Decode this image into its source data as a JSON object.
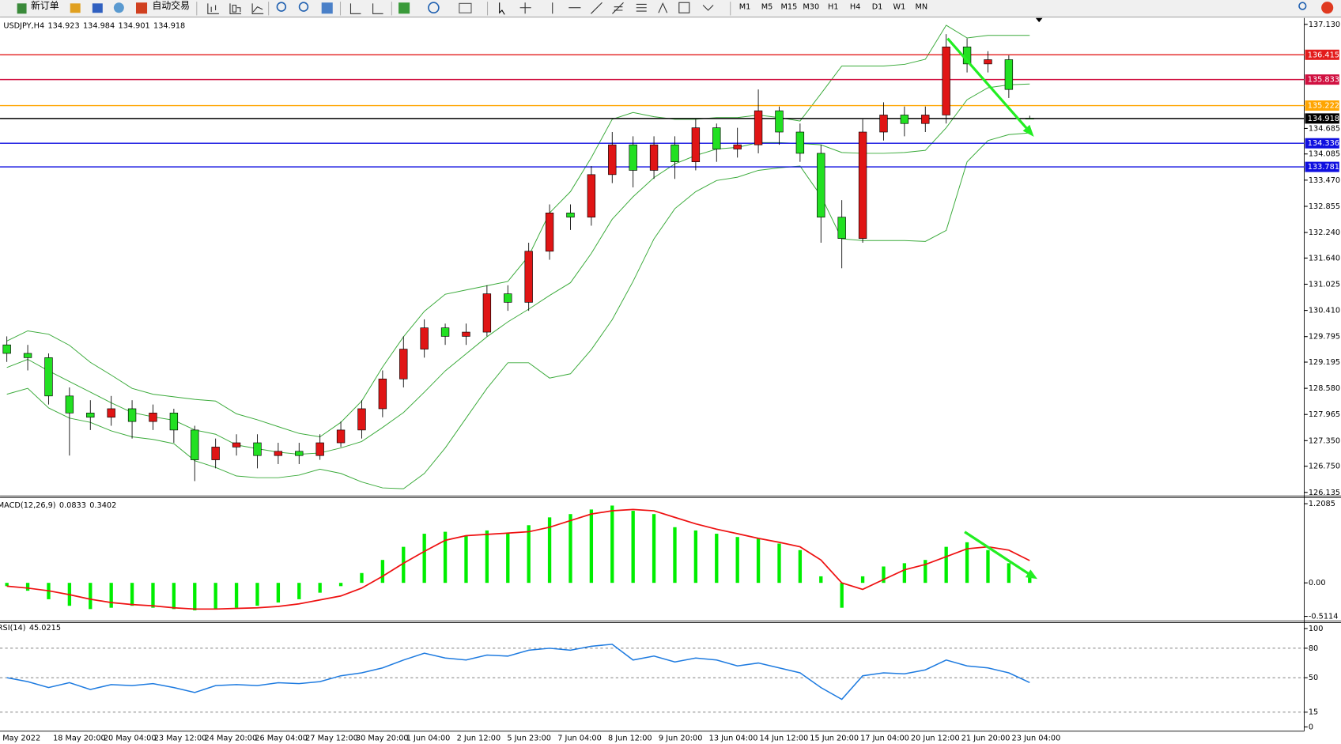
{
  "toolbar": {
    "buttons": [
      "新订单",
      "自动交易"
    ],
    "timeframes": [
      "M1",
      "M5",
      "M15",
      "M30",
      "H1",
      "H4",
      "D1",
      "W1",
      "MN"
    ]
  },
  "chart_data": [
    {
      "type": "candlestick",
      "title": "USDJPY,H4",
      "readout": [
        134.923,
        134.984,
        134.901,
        134.918
      ],
      "up_color": "#e01515",
      "down_color": "#22e022",
      "open": [
        129.6,
        129.4,
        129.3,
        128.4,
        128.0,
        127.9,
        128.1,
        127.8,
        128.0,
        127.6,
        126.9,
        127.2,
        127.3,
        127.0,
        127.1,
        127.0,
        127.3,
        127.6,
        128.1,
        128.8,
        129.5,
        130.0,
        129.8,
        129.9,
        130.8,
        130.6,
        131.8,
        132.7,
        132.6,
        133.6,
        134.3,
        133.7,
        134.3,
        133.9,
        134.7,
        134.2,
        134.3,
        135.1,
        134.6,
        134.1,
        132.6,
        132.1,
        134.6,
        135.0,
        134.8,
        135.0,
        136.6,
        136.2,
        136.3,
        134.923
      ],
      "high": [
        129.8,
        129.6,
        129.4,
        128.6,
        128.3,
        128.4,
        128.3,
        128.2,
        128.1,
        127.7,
        127.4,
        127.5,
        127.5,
        127.3,
        127.3,
        127.5,
        127.8,
        128.3,
        129.0,
        129.8,
        130.2,
        130.1,
        130.1,
        131.0,
        131.0,
        132.0,
        132.9,
        132.9,
        133.8,
        134.6,
        134.5,
        134.5,
        134.5,
        134.9,
        134.8,
        134.7,
        135.6,
        135.2,
        134.8,
        134.3,
        133.0,
        134.9,
        135.3,
        135.2,
        135.2,
        136.9,
        136.8,
        136.5,
        136.4,
        134.984
      ],
      "low": [
        129.2,
        129.0,
        128.2,
        127.0,
        127.6,
        127.7,
        127.4,
        127.6,
        127.3,
        126.4,
        126.7,
        127.0,
        126.7,
        126.8,
        126.8,
        126.9,
        127.2,
        127.4,
        127.9,
        128.6,
        129.3,
        129.6,
        129.6,
        129.8,
        130.4,
        130.4,
        131.6,
        132.3,
        132.4,
        133.4,
        133.3,
        133.5,
        133.5,
        133.7,
        133.9,
        134.0,
        134.1,
        134.3,
        133.9,
        132.0,
        131.4,
        132.0,
        134.4,
        134.5,
        134.6,
        134.8,
        136.0,
        136.0,
        135.4,
        134.901
      ],
      "close": [
        129.4,
        129.3,
        128.4,
        128.0,
        127.9,
        128.1,
        127.8,
        128.0,
        127.6,
        126.9,
        127.2,
        127.3,
        127.0,
        127.1,
        127.0,
        127.3,
        127.6,
        128.1,
        128.8,
        129.5,
        130.0,
        129.8,
        129.9,
        130.8,
        130.6,
        131.8,
        132.7,
        132.6,
        133.6,
        134.3,
        133.7,
        134.3,
        133.9,
        134.7,
        134.2,
        134.3,
        135.1,
        134.6,
        134.1,
        132.6,
        132.1,
        134.6,
        135.0,
        134.8,
        135.0,
        136.6,
        136.2,
        136.3,
        135.6,
        134.918
      ],
      "bands": [
        {
          "color": "#3aaa3a",
          "values": [
            129.69,
            129.93,
            129.85,
            129.59,
            129.19,
            128.89,
            128.58,
            128.44,
            128.38,
            128.32,
            128.28,
            127.98,
            127.84,
            127.68,
            127.52,
            127.44,
            127.78,
            128.28,
            129.08,
            129.79,
            130.39,
            130.79,
            130.89,
            130.99,
            131.09,
            131.69,
            132.7,
            133.2,
            134.0,
            134.9,
            135.06,
            134.96,
            134.9,
            134.9,
            134.94,
            134.94,
            135.0,
            134.94,
            134.86,
            135.5,
            136.15,
            136.15,
            136.15,
            136.19,
            136.31,
            137.11,
            136.81,
            136.87,
            136.87,
            136.87
          ]
        },
        {
          "color": "#3aaa3a",
          "values": [
            129.07,
            129.26,
            128.99,
            128.74,
            128.49,
            128.24,
            128.01,
            127.91,
            127.83,
            127.6,
            127.5,
            127.25,
            127.16,
            127.08,
            127.03,
            127.06,
            127.18,
            127.33,
            127.66,
            128.01,
            128.49,
            128.99,
            129.39,
            129.79,
            130.14,
            130.44,
            130.76,
            131.06,
            131.75,
            132.55,
            133.08,
            133.53,
            133.85,
            134.05,
            134.2,
            134.24,
            134.35,
            134.35,
            134.33,
            134.3,
            134.12,
            134.1,
            134.1,
            134.12,
            134.17,
            134.7,
            135.36,
            135.64,
            135.71,
            135.73
          ]
        },
        {
          "color": "#3aaa3a",
          "values": [
            128.44,
            128.58,
            128.12,
            127.88,
            127.78,
            127.58,
            127.44,
            127.38,
            127.28,
            126.88,
            126.72,
            126.52,
            126.48,
            126.48,
            126.54,
            126.68,
            126.58,
            126.38,
            126.24,
            126.22,
            126.58,
            127.18,
            127.88,
            128.58,
            129.18,
            129.18,
            128.82,
            128.92,
            129.49,
            130.19,
            131.09,
            132.09,
            132.8,
            133.2,
            133.46,
            133.54,
            133.7,
            133.76,
            133.8,
            133.1,
            132.09,
            132.05,
            132.05,
            132.05,
            132.03,
            132.29,
            133.9,
            134.4,
            134.54,
            134.58
          ]
        }
      ],
      "levels": [
        {
          "value": 136.415,
          "color": "#e31c1c"
        },
        {
          "value": 135.833,
          "color": "#d01040"
        },
        {
          "value": 135.222,
          "color": "#ffa500"
        },
        {
          "value": 134.918,
          "color": "#000000"
        },
        {
          "value": 134.336,
          "color": "#1010e0"
        },
        {
          "value": 133.781,
          "color": "#1010e0"
        }
      ],
      "ylim": [
        126.05,
        137.28
      ],
      "yticks": [
        {
          "value": 137.13,
          "label": "137.130"
        },
        134.685,
        134.085,
        {
          "value": 133.47,
          "label": "133.470"
        },
        132.855,
        {
          "value": 132.24,
          "label": "132.240"
        },
        {
          "value": 131.64,
          "label": "131.640"
        },
        131.025,
        {
          "value": 130.41,
          "label": "130.410"
        },
        129.795,
        129.195,
        {
          "value": 128.58,
          "label": "128.580"
        },
        127.965,
        {
          "value": 127.35,
          "label": "127.350"
        },
        {
          "value": 126.75,
          "label": "126.750"
        },
        126.135
      ],
      "time_labels": [
        "May 2022",
        "18 May 20:00",
        "20 May 04:00",
        "23 May 12:00",
        "24 May 20:00",
        "26 May 04:00",
        "27 May 12:00",
        "30 May 20:00",
        "1 Jun 04:00",
        "2 Jun 12:00",
        "5 Jun 23:00",
        "7 Jun 04:00",
        "8 Jun 12:00",
        "9 Jun 20:00",
        "13 Jun 04:00",
        "14 Jun 12:00",
        "15 Jun 20:00",
        "17 Jun 04:00",
        "20 Jun 12:00",
        "21 Jun 20:00",
        "23 Jun 04:00"
      ]
    },
    {
      "type": "macd",
      "title": "MACD(12,26,9)",
      "readout": [
        0.0833,
        0.3402
      ],
      "histogram": {
        "color": "#00ee00",
        "values": [
          -0.05,
          -0.12,
          -0.25,
          -0.35,
          -0.4,
          -0.38,
          -0.35,
          -0.38,
          -0.4,
          -0.42,
          -0.4,
          -0.38,
          -0.35,
          -0.3,
          -0.25,
          -0.15,
          -0.05,
          0.15,
          0.35,
          0.55,
          0.75,
          0.78,
          0.72,
          0.8,
          0.76,
          0.88,
          1.0,
          1.05,
          1.12,
          1.18,
          1.1,
          1.05,
          0.85,
          0.8,
          0.75,
          0.7,
          0.68,
          0.6,
          0.5,
          0.1,
          -0.38,
          0.1,
          0.25,
          0.3,
          0.35,
          0.55,
          0.62,
          0.5,
          0.3,
          0.0833
        ]
      },
      "signal": {
        "color": "#ee1111",
        "values": [
          -0.05,
          -0.08,
          -0.12,
          -0.18,
          -0.25,
          -0.3,
          -0.33,
          -0.35,
          -0.38,
          -0.4,
          -0.4,
          -0.39,
          -0.38,
          -0.36,
          -0.32,
          -0.26,
          -0.2,
          -0.08,
          0.1,
          0.3,
          0.48,
          0.65,
          0.72,
          0.74,
          0.76,
          0.78,
          0.85,
          0.95,
          1.05,
          1.1,
          1.12,
          1.1,
          1.0,
          0.9,
          0.82,
          0.75,
          0.68,
          0.62,
          0.55,
          0.35,
          0.0,
          -0.1,
          0.05,
          0.2,
          0.28,
          0.4,
          0.52,
          0.55,
          0.5,
          0.3402
        ]
      },
      "ylim": [
        -0.58,
        1.3
      ],
      "yticks": [
        1.2085,
        {
          "value": 0,
          "label": "0.00"
        },
        -0.5114
      ]
    },
    {
      "type": "line",
      "title": "RSI(14)",
      "readout": [
        45.0215
      ],
      "series": [
        {
          "color": "#1e7be0",
          "values": [
            50,
            46,
            40,
            45,
            38,
            43,
            42,
            44,
            40,
            35,
            42,
            43,
            42,
            45,
            44,
            46,
            52,
            55,
            60,
            68,
            75,
            70,
            68,
            73,
            72,
            78,
            80,
            78,
            82,
            84,
            68,
            72,
            66,
            70,
            68,
            62,
            65,
            60,
            55,
            40,
            28,
            52,
            55,
            54,
            58,
            68,
            62,
            60,
            55,
            45.0215
          ]
        }
      ],
      "ylim": [
        0,
        100
      ],
      "yticks": [
        100,
        80,
        50,
        15,
        0
      ]
    }
  ]
}
